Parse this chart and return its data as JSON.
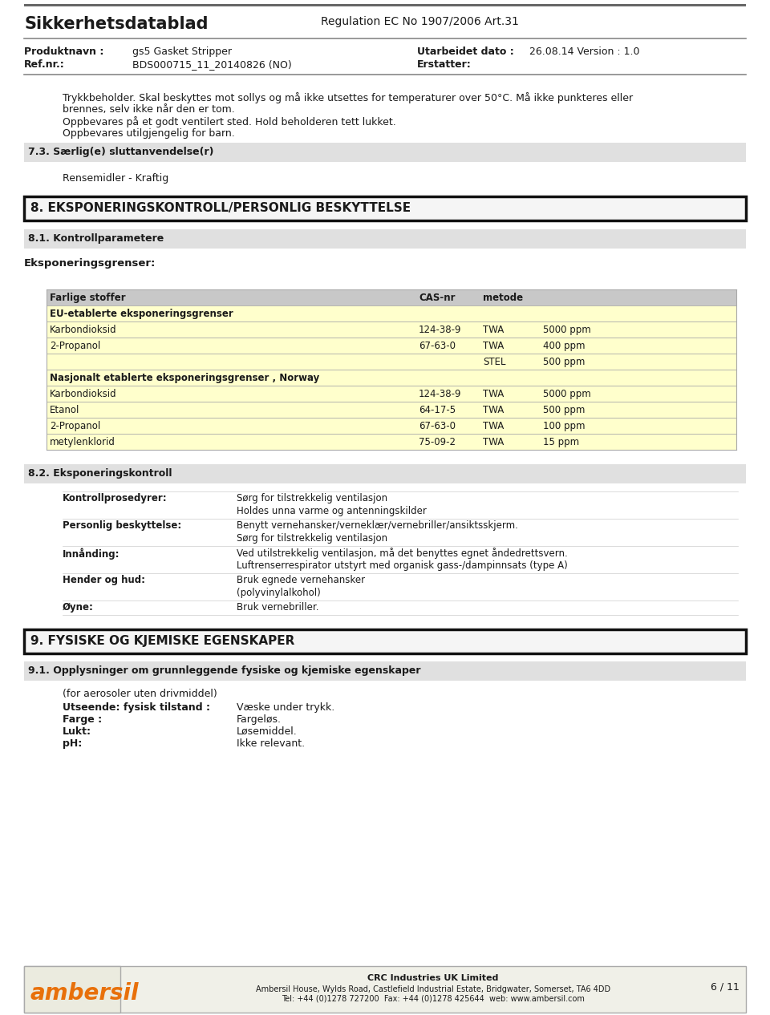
{
  "page_bg": "#ffffff",
  "header": {
    "title": "Sikkerhetsdatablad",
    "regulation": "Regulation EC No 1907/2006 Art.31",
    "product_label": "Produktnavn :",
    "product_value": "gs5 Gasket Stripper",
    "ref_label": "Ref.nr.:",
    "ref_value": "BDS000715_11_20140826 (NO)",
    "date_label": "Utarbeidet dato :",
    "date_value": "26.08.14 Version : 1.0",
    "erstatter_label": "Erstatter:"
  },
  "warning_text": [
    "Trykkbeholder. Skal beskyttes mot sollys og må ikke utsettes for temperaturer over 50°C. Må ikke punkteres eller",
    "brennes, selv ikke når den er tom.",
    "Oppbevares på et godt ventilert sted. Hold beholderen tett lukket.",
    "Oppbevares utilgjengelig for barn."
  ],
  "section73_header": "7.3. Særlig(e) sluttanvendelse(r)",
  "section73_content": "Rensemidler - Kraftig",
  "section8_header": "8. EKSPONERINGSKONTROLL/PERSONLIG BESKYTTELSE",
  "section81_header": "8.1. Kontrollparametere",
  "eksponeringsgrenser_label": "Eksponeringsgrenser:",
  "table_header_bg": "#c8c8c8",
  "table_data_bg": "#ffffcc",
  "table_section1_header": "EU-etablerte eksponeringsgrenser",
  "table_eu_rows": [
    [
      "Karbondioksid",
      "124-38-9",
      "TWA",
      "5000 ppm"
    ],
    [
      "2-Propanol",
      "67-63-0",
      "TWA",
      "400 ppm"
    ],
    [
      "",
      "",
      "STEL",
      "500 ppm"
    ]
  ],
  "table_section2_header": "Nasjonalt etablerte eksponeringsgrenser , Norway",
  "table_no_rows": [
    [
      "Karbondioksid",
      "124-38-9",
      "TWA",
      "5000 ppm"
    ],
    [
      "Etanol",
      "64-17-5",
      "TWA",
      "500 ppm"
    ],
    [
      "2-Propanol",
      "67-63-0",
      "TWA",
      "100 ppm"
    ],
    [
      "metylenklorid",
      "75-09-2",
      "TWA",
      "15 ppm"
    ]
  ],
  "section82_header": "8.2. Eksponeringskontroll",
  "control_rows": [
    {
      "label": "Kontrollprosedyrer:",
      "lines": [
        "Sørg for tilstrekkelig ventilasjon",
        "Holdes unna varme og antenningskilder"
      ]
    },
    {
      "label": "Personlig beskyttelse:",
      "lines": [
        "Benytt vernehansker/verneklær/vernebriller/ansiktsskjerm.",
        "Sørg for tilstrekkelig ventilasjon"
      ]
    },
    {
      "label": "Innånding:",
      "lines": [
        "Ved utilstrekkelig ventilasjon, må det benyttes egnet åndedrettsvern.",
        "Luftrenserrespirator utstyrt med organisk gass-/dampinnsats (type A)"
      ]
    },
    {
      "label": "Hender og hud:",
      "lines": [
        "Bruk egnede vernehansker",
        "(polyvinylalkohol)"
      ]
    },
    {
      "label": "Øyne:",
      "lines": [
        "Bruk vernebriller."
      ]
    }
  ],
  "section9_header": "9. FYSISKE OG KJEMISKE EGENSKAPER",
  "section91_header": "9.1. Opplysninger om grunnleggende fysiske og kjemiske egenskaper",
  "section91_intro": "(for aerosoler uten drivmiddel)",
  "section91_rows": [
    [
      "Utseende: fysisk tilstand :",
      "Væske under trykk."
    ],
    [
      "Farge :",
      "Fargeløs."
    ],
    [
      "Lukt:",
      "Løsemiddel."
    ],
    [
      "pH:",
      "Ikke relevant."
    ]
  ],
  "footer": {
    "logo_text": "ambersil",
    "logo_color": "#e8700a",
    "company": "CRC Industries UK Limited",
    "address": "Ambersil House, Wylds Road, Castlefield Industrial Estate, Bridgwater, Somerset, TA6 4DD",
    "tel": "Tel: +44 (0)1278 727200  Fax: +44 (0)1278 425644  web: www.ambersil.com",
    "page": "6 / 11",
    "footer_bg": "#f0f0e8",
    "border_color": "#aaaaaa"
  },
  "gray_bg": "#e0e0e0",
  "line_color": "#888888",
  "table_line_color": "#aaaaaa"
}
